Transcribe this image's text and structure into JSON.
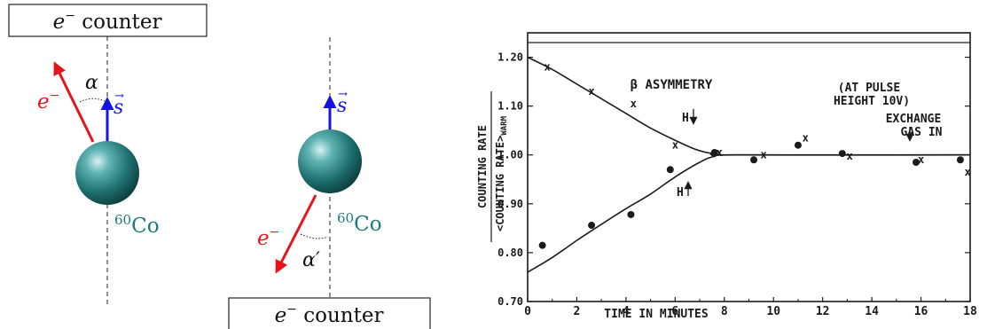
{
  "colors": {
    "electron": "#e8141b",
    "spin": "#1414e0",
    "cobalt": "#1b7b7b",
    "ink": "#1a1a1a"
  },
  "left_diagram": {
    "counter_label": {
      "sym": "e",
      "sup": "−",
      "text": " counter"
    },
    "electron_label": {
      "sym": "e",
      "sup": "−"
    },
    "spin_label": "s",
    "angle_label": "α",
    "nucleus_label": {
      "mass": "60",
      "element": "Co"
    }
  },
  "right_diagram": {
    "counter_label": {
      "sym": "e",
      "sup": "−",
      "text": " counter"
    },
    "electron_label": {
      "sym": "e",
      "sup": "−"
    },
    "spin_label": "s",
    "angle_label": "α′",
    "nucleus_label": {
      "mass": "60",
      "element": "Co"
    }
  },
  "chart_data": {
    "type": "scatter",
    "xlabel": "TIME IN MINUTES",
    "ylabel_numerator": "COUNTING RATE",
    "ylabel_denominator": "<COUNTING RATE>",
    "ylabel_denominator_sub": "WARM",
    "xlim": [
      0,
      18
    ],
    "ylim": [
      0.7,
      1.25
    ],
    "x_ticks": [
      0,
      2,
      4,
      6,
      8,
      10,
      12,
      14,
      16,
      18
    ],
    "y_ticks": [
      0.7,
      0.8,
      0.9,
      1.0,
      1.1,
      1.2
    ],
    "y_tick_labels": [
      "0.70",
      "0.80",
      "0.90",
      "1.00",
      "1.10",
      "1.20"
    ],
    "annotations": {
      "title": "β ASYMMETRY",
      "pulse_line1": "(AT PULSE",
      "pulse_line2": "HEIGHT 10V)",
      "exchange_line1": "EXCHANGE",
      "exchange_line2": "GAS IN",
      "field_down": "H",
      "field_up": "H"
    },
    "series": [
      {
        "marker": "x",
        "points": [
          [
            0.8,
            1.18
          ],
          [
            2.6,
            1.13
          ],
          [
            4.3,
            1.105
          ],
          [
            6.0,
            1.02
          ],
          [
            7.8,
            1.005
          ],
          [
            9.6,
            1.0
          ],
          [
            11.3,
            1.035
          ],
          [
            13.1,
            0.998
          ],
          [
            16.0,
            0.99
          ],
          [
            17.9,
            0.965
          ]
        ],
        "fit": [
          [
            0,
            1.2
          ],
          [
            1,
            1.175
          ],
          [
            2,
            1.145
          ],
          [
            3,
            1.115
          ],
          [
            4,
            1.085
          ],
          [
            5,
            1.055
          ],
          [
            6,
            1.03
          ],
          [
            6.8,
            1.012
          ],
          [
            7.5,
            1.003
          ],
          [
            8.5,
            1.0
          ],
          [
            18,
            1.0
          ]
        ]
      },
      {
        "marker": "dot",
        "points": [
          [
            0.6,
            0.815
          ],
          [
            2.6,
            0.856
          ],
          [
            4.2,
            0.878
          ],
          [
            5.8,
            0.97
          ],
          [
            7.6,
            1.005
          ],
          [
            9.2,
            0.99
          ],
          [
            11.0,
            1.02
          ],
          [
            12.8,
            1.003
          ],
          [
            15.8,
            0.985
          ],
          [
            17.6,
            0.99
          ]
        ],
        "fit": [
          [
            0,
            0.76
          ],
          [
            1,
            0.79
          ],
          [
            2,
            0.825
          ],
          [
            3,
            0.858
          ],
          [
            4,
            0.89
          ],
          [
            5,
            0.92
          ],
          [
            6,
            0.955
          ],
          [
            7,
            0.985
          ],
          [
            7.6,
            0.997
          ],
          [
            8.5,
            1.0
          ],
          [
            18,
            1.0
          ]
        ]
      }
    ]
  }
}
